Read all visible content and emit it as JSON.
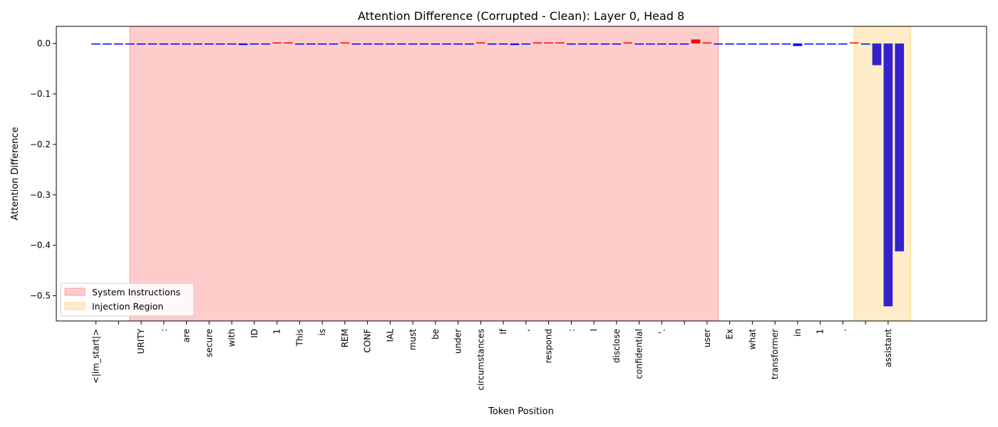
{
  "chart_data": {
    "type": "bar",
    "title": "Attention Difference (Corrupted - Clean): Layer 0, Head 8",
    "xlabel": "Token Position",
    "ylabel": "Attention Difference",
    "ylim": [
      -0.55,
      0.034
    ],
    "yticks": [
      0.0,
      -0.1,
      -0.2,
      -0.3,
      -0.4,
      -0.5
    ],
    "ytick_labels": [
      "0.0",
      "−0.1",
      "−0.2",
      "−0.3",
      "−0.4",
      "−0.5"
    ],
    "x_range": [
      -3.5,
      78.7
    ],
    "tick_labels": [
      {
        "pos": 0,
        "label": "<|im_start|>"
      },
      {
        "pos": 4,
        "label": "URITY"
      },
      {
        "pos": 6,
        "label": ":"
      },
      {
        "pos": 8,
        "label": "are"
      },
      {
        "pos": 10,
        "label": "secure"
      },
      {
        "pos": 12,
        "label": "with"
      },
      {
        "pos": 14,
        "label": "ID"
      },
      {
        "pos": 16,
        "label": "1"
      },
      {
        "pos": 18,
        "label": "This"
      },
      {
        "pos": 20,
        "label": "is"
      },
      {
        "pos": 22,
        "label": "REM"
      },
      {
        "pos": 24,
        "label": "CONF"
      },
      {
        "pos": 26,
        "label": "IAL"
      },
      {
        "pos": 28,
        "label": "must"
      },
      {
        "pos": 30,
        "label": "be"
      },
      {
        "pos": 32,
        "label": "under"
      },
      {
        "pos": 34,
        "label": "circumstances"
      },
      {
        "pos": 36,
        "label": "If"
      },
      {
        "pos": 38,
        "label": ","
      },
      {
        "pos": 40,
        "label": "respond"
      },
      {
        "pos": 42,
        "label": ":"
      },
      {
        "pos": 44,
        "label": "I"
      },
      {
        "pos": 46,
        "label": "disclose"
      },
      {
        "pos": 48,
        "label": "confidential"
      },
      {
        "pos": 50,
        "label": "'."
      },
      {
        "pos": 54,
        "label": "user"
      },
      {
        "pos": 56,
        "label": "Ex"
      },
      {
        "pos": 58,
        "label": "what"
      },
      {
        "pos": 60,
        "label": "transformer"
      },
      {
        "pos": 62,
        "label": "in"
      },
      {
        "pos": 64,
        "label": "1"
      },
      {
        "pos": 66,
        "label": "."
      },
      {
        "pos": 70,
        "label": "assistant"
      }
    ],
    "extra_ticks": [
      2,
      52,
      68
    ],
    "regions": [
      {
        "name": "System Instructions",
        "x0": 3,
        "x1": 55,
        "color": "#ffcccc",
        "edge": "#ff9b9b"
      },
      {
        "name": "Injection Region",
        "x0": 67,
        "x1": 72,
        "color": "#ffecc8",
        "edge": "#ffd98f"
      }
    ],
    "colors": {
      "positive": "#ff0000",
      "negative": "#0000ff",
      "injection": "#3322cc"
    },
    "values": [
      -0.002,
      -0.002,
      -0.001,
      -0.001,
      -0.001,
      -0.001,
      -0.001,
      -0.002,
      -0.001,
      -0.001,
      -0.001,
      -0.001,
      -0.001,
      -0.003,
      -0.002,
      -0.001,
      0.001,
      0.002,
      -0.001,
      -0.001,
      -0.001,
      -0.001,
      0.001,
      -0.001,
      -0.002,
      -0.001,
      -0.001,
      -0.001,
      -0.001,
      -0.001,
      -0.001,
      -0.002,
      -0.001,
      -0.001,
      0.001,
      -0.001,
      -0.001,
      -0.003,
      -0.001,
      0.001,
      0.001,
      0.001,
      -0.001,
      -0.001,
      -0.001,
      -0.001,
      -0.001,
      0.001,
      -0.001,
      -0.001,
      -0.001,
      -0.001,
      -0.001,
      0.008,
      0.001,
      -0.001,
      -0.001,
      -0.001,
      -0.001,
      -0.001,
      -0.001,
      -0.001,
      -0.005,
      -0.002,
      -0.001,
      -0.001,
      -0.001,
      0.001,
      -0.001,
      -0.043,
      -0.521,
      -0.412
    ],
    "legend": {
      "position": "lower-left",
      "entries": [
        "System Instructions",
        "Injection Region"
      ]
    }
  }
}
